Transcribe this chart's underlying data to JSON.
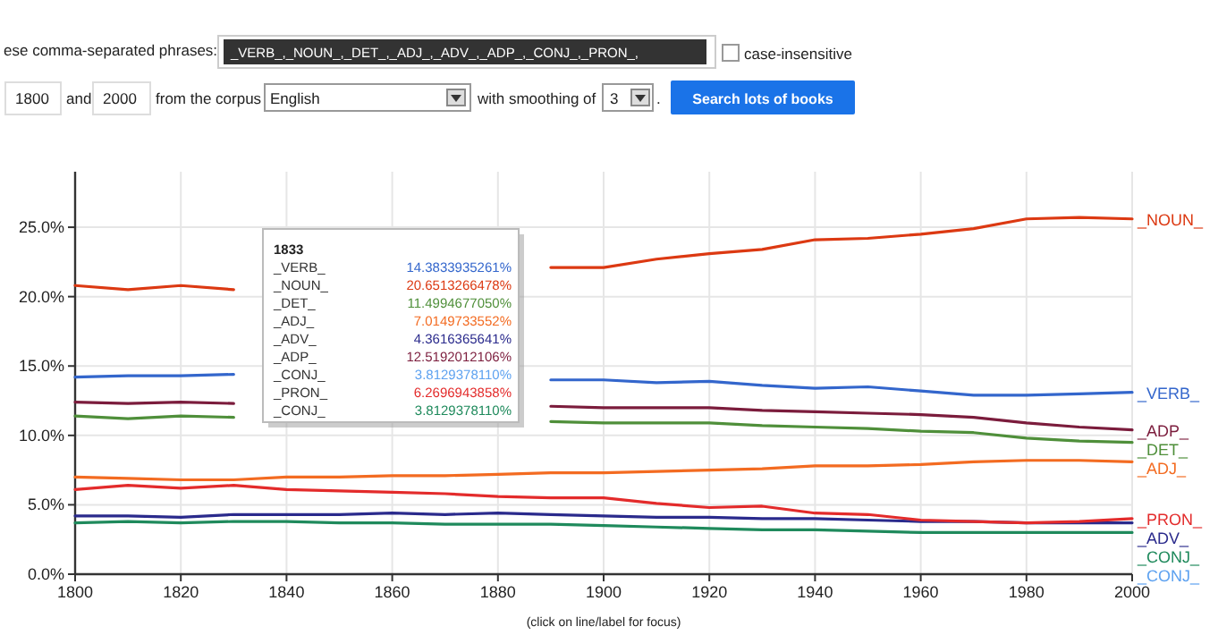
{
  "chart_data": {
    "type": "line",
    "x": [
      1800,
      1810,
      1820,
      1830,
      1840,
      1850,
      1860,
      1870,
      1880,
      1890,
      1900,
      1910,
      1920,
      1930,
      1940,
      1950,
      1960,
      1970,
      1980,
      1990,
      2000
    ],
    "xlim": [
      1800,
      2000
    ],
    "xticks": [
      1800,
      1820,
      1840,
      1860,
      1880,
      1900,
      1920,
      1940,
      1960,
      1980,
      2000
    ],
    "ylim": [
      0,
      29
    ],
    "yticks": [
      {
        "value": 0,
        "label": "0.0%"
      },
      {
        "value": 5,
        "label": "5.0%"
      },
      {
        "value": 10,
        "label": "10.0%"
      },
      {
        "value": 15,
        "label": "15.0%"
      },
      {
        "value": 20,
        "label": "20.0%"
      },
      {
        "value": 25,
        "label": "25.0%"
      }
    ],
    "grid": true,
    "marker": "none",
    "line_style": "solid",
    "series": [
      {
        "name": "_VERB_",
        "color": "#3366cc",
        "values": [
          14.2,
          14.3,
          14.3,
          14.4,
          null,
          null,
          null,
          null,
          null,
          14.0,
          14.0,
          13.8,
          13.9,
          13.6,
          13.4,
          13.5,
          13.2,
          12.9,
          12.9,
          13.0,
          13.1
        ]
      },
      {
        "name": "_NOUN_",
        "color": "#dc3912",
        "values": [
          20.8,
          20.5,
          20.8,
          20.5,
          null,
          null,
          null,
          null,
          null,
          22.1,
          22.1,
          22.7,
          23.1,
          23.4,
          24.1,
          24.2,
          24.5,
          24.9,
          25.6,
          25.7,
          25.6
        ]
      },
      {
        "name": "_DET_",
        "color": "#4f8f3a",
        "values": [
          11.4,
          11.2,
          11.4,
          11.3,
          null,
          null,
          null,
          null,
          null,
          11.0,
          10.9,
          10.9,
          10.9,
          10.7,
          10.6,
          10.5,
          10.3,
          10.2,
          9.8,
          9.6,
          9.5
        ]
      },
      {
        "name": "_ADJ_",
        "color": "#f36b21",
        "values": [
          7.0,
          6.9,
          6.8,
          6.8,
          7.0,
          7.0,
          7.1,
          7.1,
          7.2,
          7.3,
          7.3,
          7.4,
          7.5,
          7.6,
          7.8,
          7.8,
          7.9,
          8.1,
          8.2,
          8.2,
          8.1
        ]
      },
      {
        "name": "_ADV_",
        "color": "#2a2a8c",
        "values": [
          4.2,
          4.2,
          4.1,
          4.3,
          4.3,
          4.3,
          4.4,
          4.3,
          4.4,
          4.3,
          4.2,
          4.1,
          4.1,
          4.0,
          4.0,
          3.9,
          3.8,
          3.8,
          3.7,
          3.7,
          3.7
        ]
      },
      {
        "name": "_ADP_",
        "color": "#7b1c3c",
        "values": [
          12.4,
          12.3,
          12.4,
          12.3,
          null,
          null,
          null,
          null,
          null,
          12.1,
          12.0,
          12.0,
          12.0,
          11.8,
          11.7,
          11.6,
          11.5,
          11.3,
          10.9,
          10.6,
          10.4
        ]
      },
      {
        "name": "_CONJ_",
        "color": "#5ea2f0",
        "values": [
          null,
          null,
          null,
          null,
          null,
          null,
          null,
          null,
          null,
          null,
          null,
          null,
          null,
          null,
          null,
          null,
          null,
          null,
          null,
          null,
          null
        ]
      },
      {
        "name": "_PRON_",
        "color": "#e32b2b",
        "values": [
          6.1,
          6.4,
          6.2,
          6.4,
          6.1,
          6.0,
          5.9,
          5.8,
          5.6,
          5.5,
          5.5,
          5.1,
          4.8,
          4.9,
          4.4,
          4.3,
          3.9,
          3.8,
          3.7,
          3.8,
          4.0
        ]
      },
      {
        "name": "_CONJ_",
        "color": "#1f8a5c",
        "values": [
          3.7,
          3.8,
          3.7,
          3.8,
          3.8,
          3.7,
          3.7,
          3.6,
          3.6,
          3.6,
          3.5,
          3.4,
          3.3,
          3.2,
          3.2,
          3.1,
          3.0,
          3.0,
          3.0,
          3.0,
          3.0
        ]
      }
    ],
    "annotations": [
      "1833",
      "14.3833935261%",
      "20.6513266478%",
      "11.4994677050%",
      "7.0149733552%",
      "4.3616365641%",
      "12.5192012106%",
      "3.8129378110%",
      "6.2696943858%",
      "3.8129378110%",
      "ese comma-separated phrases:",
      "_VERB_,_NOUN_,_DET_,_ADJ_,_ADV_,_ADP_,_CONJ_,_PRON_,",
      "case-insensitive",
      "1800",
      "and",
      "2000",
      "from the corpus",
      "English",
      "with smoothing of",
      "3",
      ".",
      "Search lots of books",
      "(click on line/label for focus)"
    ]
  }
}
